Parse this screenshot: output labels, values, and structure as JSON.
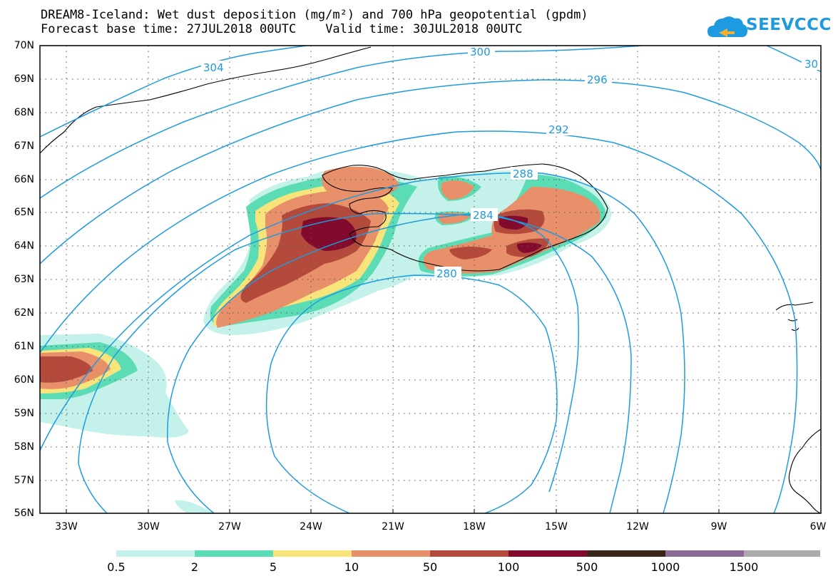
{
  "header": {
    "title": "DREAM8-Iceland: Wet dust deposition (mg/m²) and 700 hPa geopotential (gpdm)",
    "base_time_label": "Forecast base time: 27JUL2018 00UTC",
    "valid_time_label": "Valid time: 30JUL2018 00UTC"
  },
  "logo": {
    "text": "SEEVCCC",
    "icon": "cloud-logo-icon",
    "color": "#1e9be0"
  },
  "map": {
    "lat_labels": [
      "70N",
      "69N",
      "68N",
      "67N",
      "66N",
      "65N",
      "64N",
      "63N",
      "62N",
      "61N",
      "60N",
      "59N",
      "58N",
      "57N",
      "56N"
    ],
    "lon_labels": [
      "33W",
      "30W",
      "27W",
      "24W",
      "21W",
      "18W",
      "15W",
      "12W",
      "9W",
      "6W"
    ],
    "contour_color": "#1e9be0",
    "contour_labels": [
      {
        "text": "304"
      },
      {
        "text": "300"
      },
      {
        "text": "30"
      },
      {
        "text": "296"
      },
      {
        "text": "292"
      },
      {
        "text": "288"
      },
      {
        "text": "284"
      },
      {
        "text": "280"
      }
    ]
  },
  "colorbar": {
    "colors": [
      "#c4f2ea",
      "#5cdcb4",
      "#f7e47a",
      "#e8906a",
      "#b44a3c",
      "#820a2c",
      "#3a2618",
      "#8c6a94",
      "#aaaaaa"
    ],
    "labels": [
      "0.5",
      "2",
      "5",
      "10",
      "50",
      "100",
      "500",
      "1000",
      "1500"
    ]
  }
}
